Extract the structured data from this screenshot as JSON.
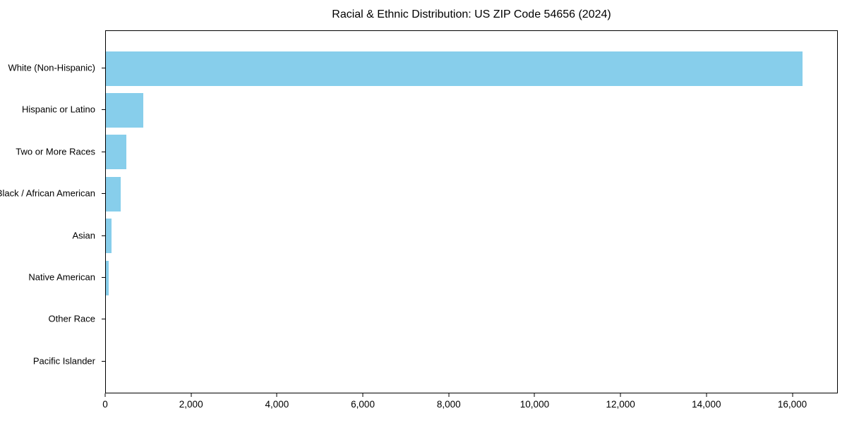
{
  "chart_data": {
    "type": "bar",
    "orientation": "horizontal",
    "title": "Racial & Ethnic Distribution: US ZIP Code 54656 (2024)",
    "categories": [
      "White (Non-Hispanic)",
      "Hispanic or Latino",
      "Two or More Races",
      "Black / African American",
      "Asian",
      "Native American",
      "Other Race",
      "Pacific Islander"
    ],
    "values": [
      16250,
      870,
      480,
      350,
      135,
      60,
      0,
      0
    ],
    "xlabel": "",
    "ylabel": "",
    "xlim": [
      0,
      17060
    ],
    "xticks": {
      "values": [
        0,
        2000,
        4000,
        6000,
        8000,
        10000,
        12000,
        14000,
        16000
      ],
      "labels": [
        "0",
        "2,000",
        "4,000",
        "6,000",
        "8,000",
        "10,000",
        "12,000",
        "14,000",
        "16,000"
      ]
    },
    "bar_color": "#87CEEB",
    "grid": false,
    "legend_position": "none"
  },
  "colors": {
    "background": "#FFFFFF",
    "spine": "#000000",
    "text": "#000000",
    "bar": "#87CEEB"
  }
}
